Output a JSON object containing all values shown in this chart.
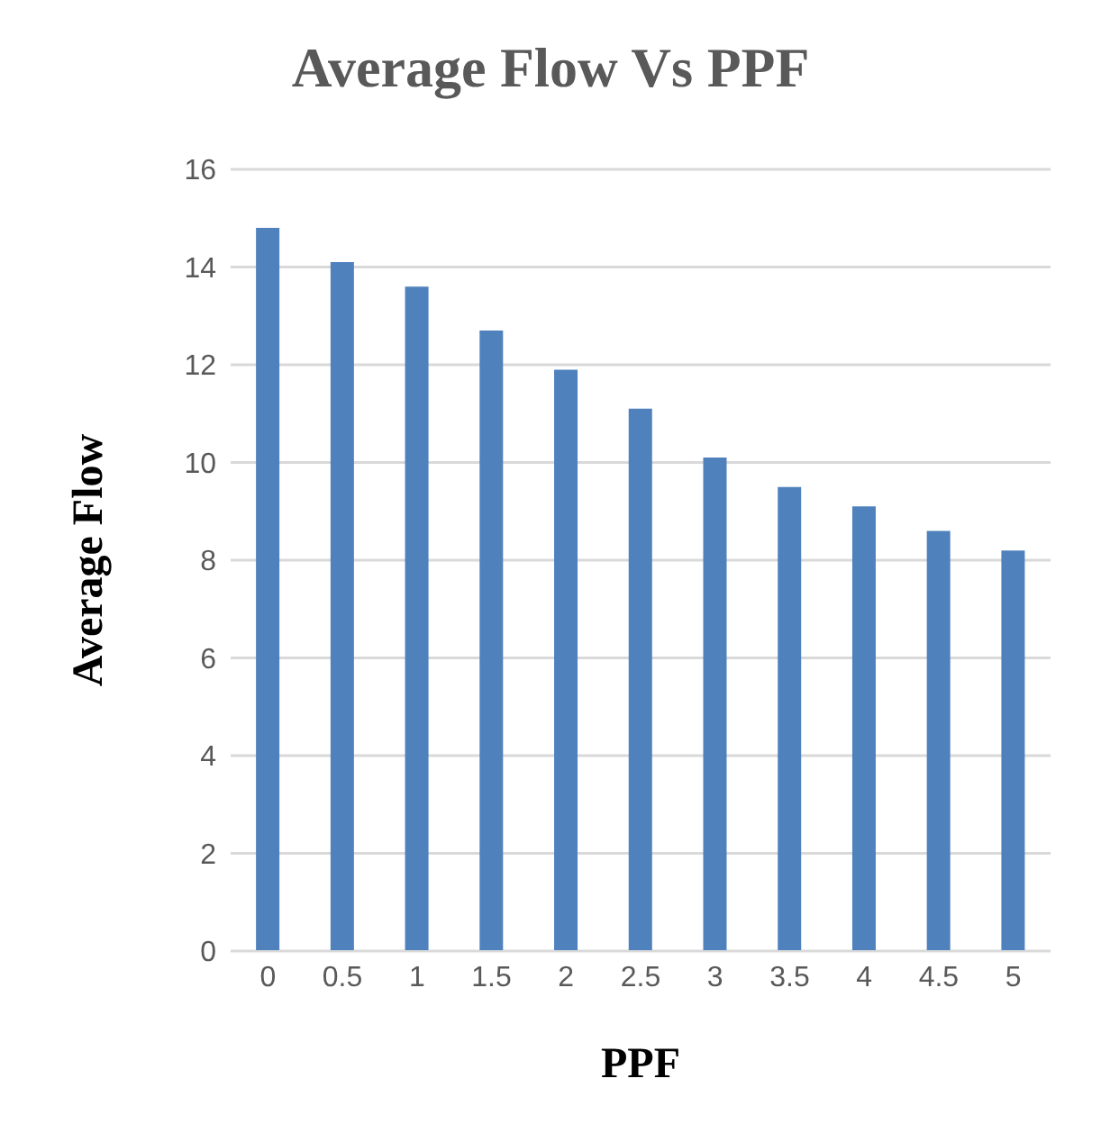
{
  "chart_data": {
    "type": "bar",
    "title": "Average Flow Vs PPF",
    "xlabel": "PPF",
    "ylabel": "Average Flow",
    "categories": [
      "0",
      "0.5",
      "1",
      "1.5",
      "2",
      "2.5",
      "3",
      "3.5",
      "4",
      "4.5",
      "5"
    ],
    "values": [
      14.8,
      14.1,
      13.6,
      12.7,
      11.9,
      11.1,
      10.1,
      9.5,
      9.1,
      8.6,
      8.2
    ],
    "color": "#4f81bd",
    "ylim": [
      0,
      16
    ],
    "yticks": [
      0,
      2,
      4,
      6,
      8,
      10,
      12,
      14,
      16
    ],
    "grid": "y"
  }
}
